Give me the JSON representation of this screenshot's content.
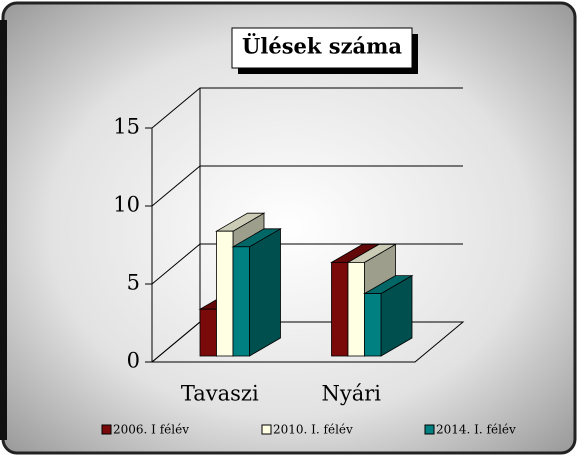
{
  "chart_data": {
    "type": "bar",
    "title": "Ülések száma",
    "categories": [
      "Tavaszi",
      "Nyári"
    ],
    "series": [
      {
        "name": "2006. I félév",
        "color": "#7a0a0a",
        "values": [
          3,
          6
        ]
      },
      {
        "name": "2010. I. félév",
        "color": "#ffffe4",
        "values": [
          8,
          6
        ]
      },
      {
        "name": "2014. I. félév",
        "color": "#008080",
        "values": [
          7,
          4
        ]
      }
    ],
    "ylim": [
      0,
      15
    ],
    "yticks": [
      0,
      5,
      10,
      15
    ],
    "grid": true,
    "legend": "bottom"
  }
}
